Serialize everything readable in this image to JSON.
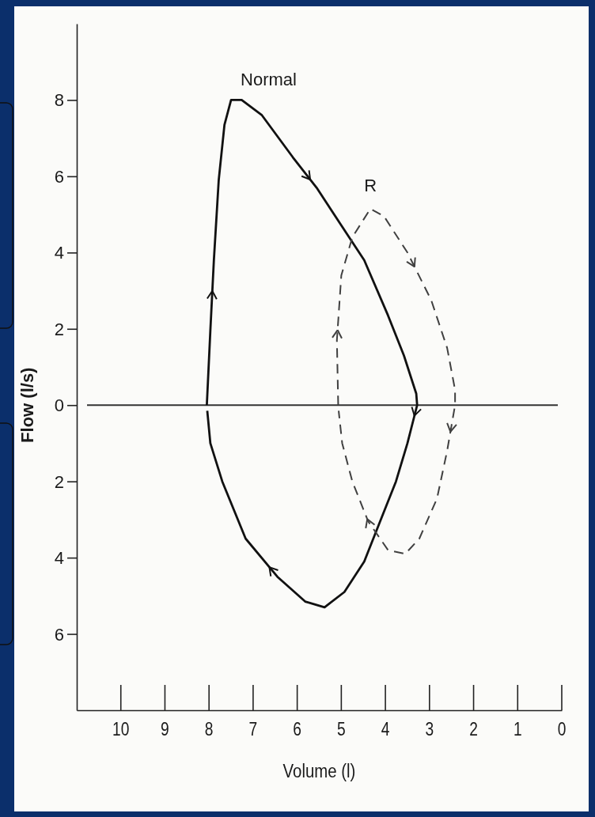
{
  "chart_data": {
    "type": "line",
    "xlabel": "Volume (l)",
    "ylabel": "Flow (l/s)",
    "xlim": [
      11,
      0
    ],
    "xticks": [
      10,
      9,
      8,
      7,
      6,
      5,
      4,
      3,
      2,
      1,
      0
    ],
    "ylim": [
      -8,
      10
    ],
    "yticks": [
      {
        "value": -6,
        "label": "6"
      },
      {
        "value": -4,
        "label": "4"
      },
      {
        "value": -2,
        "label": "2"
      },
      0,
      2,
      4,
      6,
      8
    ],
    "legend": false,
    "grid": false,
    "marker": "none",
    "ref_lines": [
      {
        "axis": "y",
        "value": 0,
        "color": "#333333"
      }
    ],
    "series": [
      {
        "name": "Normal",
        "color": "#111111",
        "line_style": "solid",
        "x": [
          8.05,
          7.97,
          7.89,
          7.78,
          7.65,
          7.5,
          7.26,
          6.8,
          6.1,
          5.56,
          5.02,
          4.48,
          3.94,
          3.58,
          3.3,
          3.28,
          3.5,
          3.76,
          4.12,
          4.48,
          4.93,
          5.38,
          5.82,
          6.45,
          7.17,
          7.7,
          7.97,
          8.04
        ],
        "values": [
          0,
          1.95,
          3.8,
          5.9,
          7.35,
          8.0,
          8.0,
          7.6,
          6.5,
          5.7,
          4.75,
          3.8,
          2.35,
          1.3,
          0.3,
          0,
          -1.0,
          -2.0,
          -3.05,
          -4.1,
          -4.9,
          -5.3,
          -5.15,
          -4.5,
          -3.5,
          -2.0,
          -1.0,
          -0.15
        ]
      },
      {
        "name": "R",
        "color": "#404040",
        "line_style": "dashed",
        "x": [
          5.07,
          5.1,
          5.0,
          4.75,
          4.34,
          4.03,
          3.5,
          2.96,
          2.6,
          2.42,
          2.42,
          2.6,
          2.83,
          3.23,
          3.55,
          3.94,
          4.39,
          4.75,
          4.98,
          5.06
        ],
        "values": [
          0,
          1.7,
          3.4,
          4.4,
          5.15,
          4.95,
          4.0,
          2.75,
          1.5,
          0.4,
          0,
          -1.2,
          -2.45,
          -3.5,
          -3.9,
          -3.8,
          -3.05,
          -2.0,
          -1.0,
          -0.15
        ]
      }
    ]
  }
}
